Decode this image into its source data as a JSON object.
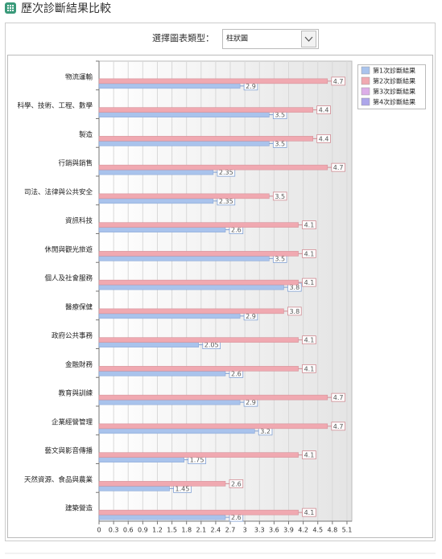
{
  "header": {
    "title": "歷次診斷結果比較"
  },
  "selector": {
    "label": "選擇圖表類型：",
    "value": "柱狀圖"
  },
  "chart_data": {
    "type": "hbar",
    "categories": [
      "物流運輸",
      "科學、技術、工程、數學",
      "製造",
      "行銷與銷售",
      "司法、法律與公共安全",
      "資訊科技",
      "休閒與觀光旅遊",
      "個人及社會服務",
      "醫療保健",
      "政府公共事務",
      "金融財務",
      "教育與訓練",
      "企業經營管理",
      "藝文與影音傳播",
      "天然資源、食品與農業",
      "建築營造"
    ],
    "series": [
      {
        "name": "第1次診斷結果",
        "color": "#a9c3ec",
        "values": [
          2.9,
          3.5,
          3.5,
          2.35,
          2.35,
          2.6,
          3.5,
          3.8,
          2.9,
          2.05,
          2.6,
          2.9,
          3.2,
          1.75,
          1.45,
          2.6
        ]
      },
      {
        "name": "第2次診斷結果",
        "color": "#f0a9b1",
        "values": [
          4.7,
          4.4,
          4.4,
          4.7,
          3.5,
          4.1,
          4.1,
          4.1,
          3.8,
          4.1,
          4.1,
          4.7,
          4.7,
          4.1,
          2.6,
          4.1
        ]
      },
      {
        "name": "第3次診斷結果",
        "color": "#dcaee8",
        "values": [
          null,
          null,
          null,
          null,
          null,
          null,
          null,
          null,
          null,
          null,
          null,
          null,
          null,
          null,
          null,
          null
        ]
      },
      {
        "name": "第4次診斷結果",
        "color": "#ada6ea",
        "values": [
          null,
          null,
          null,
          null,
          null,
          null,
          null,
          null,
          null,
          null,
          null,
          null,
          null,
          null,
          null,
          null
        ]
      }
    ],
    "xlim": [
      0,
      5.2
    ],
    "xticks": [
      0,
      0.3,
      0.6,
      0.9,
      1.2,
      1.5,
      1.8,
      2.1,
      2.4,
      2.7,
      3,
      3.3,
      3.6,
      3.9,
      4.2,
      4.5,
      4.8,
      5.1
    ],
    "grid": true,
    "legend": "top-right"
  }
}
